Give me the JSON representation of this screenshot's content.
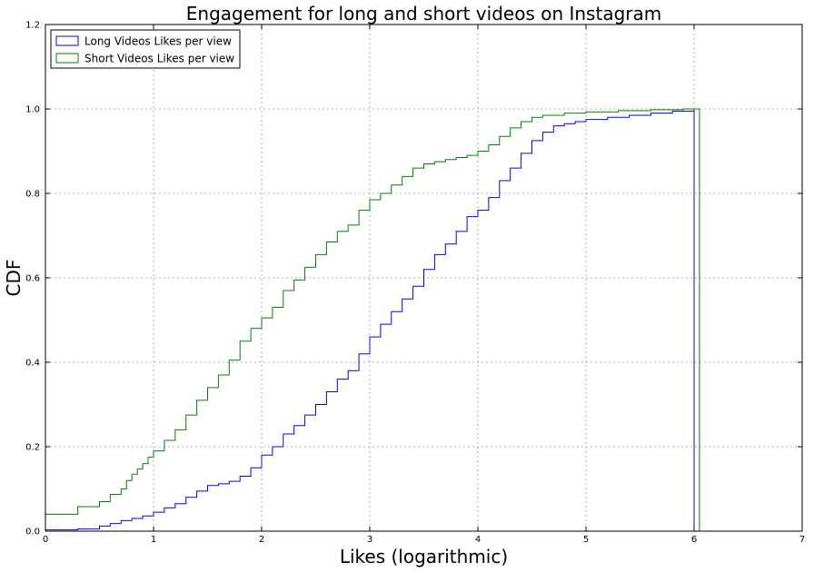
{
  "chart_data": {
    "type": "line",
    "title": "Engagement for long and short videos on Instagram",
    "xlabel": "Likes (logarithmic)",
    "ylabel": "CDF",
    "xlim": [
      0,
      7
    ],
    "ylim": [
      0,
      1.2
    ],
    "xticks": [
      "0",
      "1",
      "2",
      "3",
      "4",
      "5",
      "6",
      "7"
    ],
    "yticks": [
      "0.0",
      "0.2",
      "0.4",
      "0.6",
      "0.8",
      "1.0",
      "1.2"
    ],
    "grid": true,
    "legend_position": "top-left",
    "step": true,
    "series": [
      {
        "name": "Long Videos Likes per view",
        "color": "#0000ff",
        "points": [
          [
            0,
            0
          ],
          [
            0,
            0.003
          ],
          [
            0.3,
            0.005
          ],
          [
            0.5,
            0.012
          ],
          [
            0.6,
            0.018
          ],
          [
            0.7,
            0.025
          ],
          [
            0.8,
            0.03
          ],
          [
            0.9,
            0.036
          ],
          [
            1.0,
            0.045
          ],
          [
            1.1,
            0.055
          ],
          [
            1.2,
            0.065
          ],
          [
            1.3,
            0.08
          ],
          [
            1.4,
            0.095
          ],
          [
            1.5,
            0.108
          ],
          [
            1.6,
            0.112
          ],
          [
            1.7,
            0.118
          ],
          [
            1.8,
            0.13
          ],
          [
            1.9,
            0.15
          ],
          [
            2.0,
            0.18
          ],
          [
            2.1,
            0.2
          ],
          [
            2.2,
            0.23
          ],
          [
            2.3,
            0.25
          ],
          [
            2.4,
            0.275
          ],
          [
            2.5,
            0.3
          ],
          [
            2.6,
            0.33
          ],
          [
            2.7,
            0.36
          ],
          [
            2.8,
            0.38
          ],
          [
            2.9,
            0.42
          ],
          [
            3.0,
            0.46
          ],
          [
            3.1,
            0.49
          ],
          [
            3.2,
            0.52
          ],
          [
            3.3,
            0.55
          ],
          [
            3.4,
            0.58
          ],
          [
            3.5,
            0.62
          ],
          [
            3.6,
            0.655
          ],
          [
            3.7,
            0.68
          ],
          [
            3.8,
            0.71
          ],
          [
            3.9,
            0.745
          ],
          [
            4.0,
            0.76
          ],
          [
            4.1,
            0.79
          ],
          [
            4.2,
            0.83
          ],
          [
            4.3,
            0.86
          ],
          [
            4.4,
            0.895
          ],
          [
            4.5,
            0.925
          ],
          [
            4.6,
            0.945
          ],
          [
            4.7,
            0.96
          ],
          [
            4.8,
            0.965
          ],
          [
            4.9,
            0.97
          ],
          [
            5.0,
            0.975
          ],
          [
            5.2,
            0.98
          ],
          [
            5.4,
            0.985
          ],
          [
            5.6,
            0.99
          ],
          [
            5.8,
            0.995
          ],
          [
            6.0,
            1.0
          ],
          [
            6.0,
            0.0
          ]
        ]
      },
      {
        "name": "Short Videos Likes per view",
        "color": "#008000",
        "points": [
          [
            0,
            0
          ],
          [
            0,
            0.04
          ],
          [
            0.3,
            0.058
          ],
          [
            0.5,
            0.07
          ],
          [
            0.6,
            0.087
          ],
          [
            0.7,
            0.1
          ],
          [
            0.75,
            0.12
          ],
          [
            0.8,
            0.135
          ],
          [
            0.85,
            0.147
          ],
          [
            0.9,
            0.16
          ],
          [
            0.95,
            0.175
          ],
          [
            1.0,
            0.19
          ],
          [
            1.1,
            0.215
          ],
          [
            1.2,
            0.24
          ],
          [
            1.3,
            0.275
          ],
          [
            1.4,
            0.31
          ],
          [
            1.5,
            0.34
          ],
          [
            1.6,
            0.37
          ],
          [
            1.7,
            0.405
          ],
          [
            1.8,
            0.45
          ],
          [
            1.9,
            0.48
          ],
          [
            2.0,
            0.505
          ],
          [
            2.1,
            0.53
          ],
          [
            2.2,
            0.57
          ],
          [
            2.3,
            0.595
          ],
          [
            2.4,
            0.625
          ],
          [
            2.5,
            0.655
          ],
          [
            2.6,
            0.685
          ],
          [
            2.7,
            0.71
          ],
          [
            2.8,
            0.725
          ],
          [
            2.9,
            0.76
          ],
          [
            3.0,
            0.785
          ],
          [
            3.1,
            0.8
          ],
          [
            3.2,
            0.82
          ],
          [
            3.3,
            0.84
          ],
          [
            3.4,
            0.86
          ],
          [
            3.5,
            0.87
          ],
          [
            3.6,
            0.875
          ],
          [
            3.7,
            0.88
          ],
          [
            3.8,
            0.885
          ],
          [
            3.9,
            0.89
          ],
          [
            4.0,
            0.9
          ],
          [
            4.1,
            0.915
          ],
          [
            4.2,
            0.935
          ],
          [
            4.3,
            0.955
          ],
          [
            4.4,
            0.97
          ],
          [
            4.5,
            0.98
          ],
          [
            4.6,
            0.985
          ],
          [
            4.8,
            0.99
          ],
          [
            5.0,
            0.993
          ],
          [
            5.3,
            0.996
          ],
          [
            5.6,
            0.998
          ],
          [
            5.9,
            1.0
          ],
          [
            6.05,
            1.0
          ],
          [
            6.05,
            0.0
          ]
        ]
      }
    ]
  }
}
